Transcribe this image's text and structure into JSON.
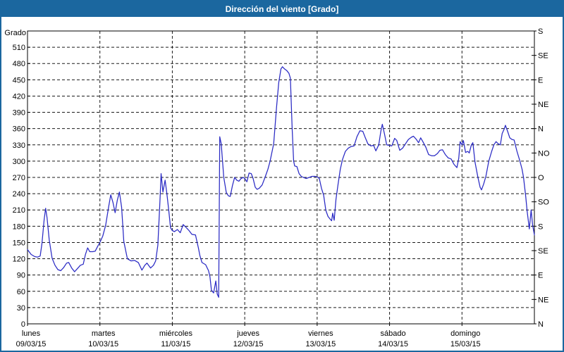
{
  "header": {
    "title": "Dirección del viento [Grado]"
  },
  "colors": {
    "header_bg": "#1b679f",
    "window_border": "#1b679f",
    "plot_bg": "#ffffff",
    "axis": "#000000",
    "grid": "#1a1a1a",
    "text": "#000000",
    "title_text": "#ffffff",
    "series_line": "#2a2ac4"
  },
  "chart_data": {
    "type": "line",
    "title": "Dirección del viento [Grado]",
    "grid": "dashed",
    "legend": "none",
    "ylim": [
      0,
      540
    ],
    "xlim_days": [
      0,
      7
    ],
    "y_axis_left": {
      "label": "Grado",
      "ticks": [
        0,
        30,
        60,
        90,
        120,
        150,
        180,
        210,
        240,
        270,
        300,
        330,
        360,
        390,
        420,
        450,
        480,
        510
      ]
    },
    "y_axis_right": {
      "ticks": [
        {
          "deg": 0,
          "label": "N"
        },
        {
          "deg": 45,
          "label": "NE"
        },
        {
          "deg": 90,
          "label": "E"
        },
        {
          "deg": 135,
          "label": "SE"
        },
        {
          "deg": 180,
          "label": "S"
        },
        {
          "deg": 225,
          "label": "SO"
        },
        {
          "deg": 270,
          "label": "O"
        },
        {
          "deg": 315,
          "label": "NO"
        },
        {
          "deg": 360,
          "label": "N"
        },
        {
          "deg": 405,
          "label": "NE"
        },
        {
          "deg": 450,
          "label": "E"
        },
        {
          "deg": 495,
          "label": "SE"
        },
        {
          "deg": 540,
          "label": "S"
        }
      ]
    },
    "x_axis": {
      "days": [
        {
          "name": "lunes",
          "date": "09/03/15"
        },
        {
          "name": "martes",
          "date": "10/03/15"
        },
        {
          "name": "miércoles",
          "date": "11/03/15"
        },
        {
          "name": "jueves",
          "date": "12/03/15"
        },
        {
          "name": "viernes",
          "date": "13/03/15"
        },
        {
          "name": "sábado",
          "date": "14/03/15"
        },
        {
          "name": "domingo",
          "date": "15/03/15"
        }
      ]
    },
    "series": [
      {
        "name": "Dirección del viento",
        "color": "#2a2ac4",
        "points": [
          [
            0.0,
            137
          ],
          [
            0.05,
            128
          ],
          [
            0.1,
            124
          ],
          [
            0.14,
            123
          ],
          [
            0.175,
            125
          ],
          [
            0.2,
            148
          ],
          [
            0.23,
            192
          ],
          [
            0.25,
            213
          ],
          [
            0.27,
            196
          ],
          [
            0.3,
            155
          ],
          [
            0.34,
            121
          ],
          [
            0.38,
            108
          ],
          [
            0.42,
            100
          ],
          [
            0.46,
            98
          ],
          [
            0.5,
            104
          ],
          [
            0.54,
            112
          ],
          [
            0.57,
            113
          ],
          [
            0.61,
            103
          ],
          [
            0.65,
            96
          ],
          [
            0.69,
            102
          ],
          [
            0.73,
            108
          ],
          [
            0.77,
            110
          ],
          [
            0.8,
            128
          ],
          [
            0.83,
            140
          ],
          [
            0.86,
            133
          ],
          [
            0.9,
            133
          ],
          [
            0.935,
            134
          ],
          [
            0.97,
            143
          ],
          [
            1.0,
            150
          ],
          [
            1.04,
            162
          ],
          [
            1.08,
            182
          ],
          [
            1.12,
            215
          ],
          [
            1.15,
            238
          ],
          [
            1.18,
            224
          ],
          [
            1.21,
            205
          ],
          [
            1.24,
            228
          ],
          [
            1.27,
            243
          ],
          [
            1.3,
            215
          ],
          [
            1.33,
            152
          ],
          [
            1.38,
            120
          ],
          [
            1.43,
            116
          ],
          [
            1.48,
            117
          ],
          [
            1.53,
            113
          ],
          [
            1.58,
            99
          ],
          [
            1.62,
            108
          ],
          [
            1.65,
            112
          ],
          [
            1.7,
            103
          ],
          [
            1.74,
            108
          ],
          [
            1.77,
            116
          ],
          [
            1.8,
            145
          ],
          [
            1.83,
            230
          ],
          [
            1.845,
            277
          ],
          [
            1.87,
            243
          ],
          [
            1.9,
            265
          ],
          [
            1.925,
            240
          ],
          [
            1.95,
            210
          ],
          [
            1.975,
            177
          ],
          [
            2.0,
            172
          ],
          [
            2.03,
            170
          ],
          [
            2.07,
            174
          ],
          [
            2.11,
            168
          ],
          [
            2.15,
            183
          ],
          [
            2.19,
            178
          ],
          [
            2.23,
            172
          ],
          [
            2.27,
            165
          ],
          [
            2.32,
            164
          ],
          [
            2.36,
            140
          ],
          [
            2.38,
            126
          ],
          [
            2.41,
            113
          ],
          [
            2.46,
            109
          ],
          [
            2.5,
            98
          ],
          [
            2.52,
            87
          ],
          [
            2.54,
            62
          ],
          [
            2.57,
            57
          ],
          [
            2.6,
            79
          ],
          [
            2.62,
            55
          ],
          [
            2.64,
            49
          ],
          [
            2.655,
            345
          ],
          [
            2.675,
            332
          ],
          [
            2.71,
            270
          ],
          [
            2.745,
            242
          ],
          [
            2.775,
            236
          ],
          [
            2.8,
            235
          ],
          [
            2.83,
            255
          ],
          [
            2.86,
            270
          ],
          [
            2.89,
            265
          ],
          [
            2.92,
            263
          ],
          [
            2.95,
            268
          ],
          [
            2.98,
            270
          ],
          [
            3.0,
            268
          ],
          [
            3.03,
            262
          ],
          [
            3.06,
            278
          ],
          [
            3.09,
            277
          ],
          [
            3.115,
            268
          ],
          [
            3.145,
            252
          ],
          [
            3.17,
            248
          ],
          [
            3.2,
            250
          ],
          [
            3.24,
            256
          ],
          [
            3.28,
            270
          ],
          [
            3.32,
            285
          ],
          [
            3.35,
            300
          ],
          [
            3.4,
            332
          ],
          [
            3.44,
            400
          ],
          [
            3.47,
            445
          ],
          [
            3.5,
            470
          ],
          [
            3.52,
            474
          ],
          [
            3.55,
            470
          ],
          [
            3.58,
            467
          ],
          [
            3.61,
            462
          ],
          [
            3.63,
            453
          ],
          [
            3.655,
            360
          ],
          [
            3.675,
            300
          ],
          [
            3.69,
            291
          ],
          [
            3.72,
            290
          ],
          [
            3.75,
            277
          ],
          [
            3.78,
            272
          ],
          [
            3.81,
            270
          ],
          [
            3.85,
            268
          ],
          [
            3.89,
            270
          ],
          [
            3.93,
            272
          ],
          [
            3.97,
            272
          ],
          [
            4.0,
            271
          ],
          [
            4.03,
            268
          ],
          [
            4.06,
            250
          ],
          [
            4.09,
            237
          ],
          [
            4.12,
            209
          ],
          [
            4.15,
            198
          ],
          [
            4.18,
            193
          ],
          [
            4.2,
            190
          ],
          [
            4.215,
            204
          ],
          [
            4.235,
            191
          ],
          [
            4.26,
            230
          ],
          [
            4.29,
            258
          ],
          [
            4.32,
            285
          ],
          [
            4.35,
            303
          ],
          [
            4.39,
            318
          ],
          [
            4.43,
            324
          ],
          [
            4.47,
            327
          ],
          [
            4.51,
            328
          ],
          [
            4.55,
            345
          ],
          [
            4.59,
            356
          ],
          [
            4.63,
            355
          ],
          [
            4.66,
            345
          ],
          [
            4.7,
            332
          ],
          [
            4.74,
            328
          ],
          [
            4.78,
            329
          ],
          [
            4.81,
            319
          ],
          [
            4.85,
            330
          ],
          [
            4.88,
            355
          ],
          [
            4.9,
            368
          ],
          [
            4.93,
            350
          ],
          [
            4.96,
            330
          ],
          [
            5.0,
            329
          ],
          [
            5.03,
            328
          ],
          [
            5.07,
            342
          ],
          [
            5.1,
            338
          ],
          [
            5.14,
            320
          ],
          [
            5.18,
            324
          ],
          [
            5.22,
            332
          ],
          [
            5.26,
            340
          ],
          [
            5.3,
            344
          ],
          [
            5.33,
            346
          ],
          [
            5.37,
            340
          ],
          [
            5.4,
            334
          ],
          [
            5.43,
            343
          ],
          [
            5.46,
            336
          ],
          [
            5.5,
            326
          ],
          [
            5.54,
            312
          ],
          [
            5.58,
            310
          ],
          [
            5.62,
            310
          ],
          [
            5.66,
            314
          ],
          [
            5.695,
            320
          ],
          [
            5.73,
            321
          ],
          [
            5.77,
            312
          ],
          [
            5.81,
            306
          ],
          [
            5.85,
            304
          ],
          [
            5.89,
            294
          ],
          [
            5.93,
            288
          ],
          [
            5.955,
            305
          ],
          [
            5.975,
            336
          ],
          [
            6.0,
            330
          ],
          [
            6.02,
            338
          ],
          [
            6.05,
            316
          ],
          [
            6.08,
            318
          ],
          [
            6.1,
            315
          ],
          [
            6.13,
            330
          ],
          [
            6.15,
            334
          ],
          [
            6.18,
            298
          ],
          [
            6.22,
            270
          ],
          [
            6.25,
            252
          ],
          [
            6.27,
            247
          ],
          [
            6.3,
            258
          ],
          [
            6.33,
            272
          ],
          [
            6.37,
            300
          ],
          [
            6.41,
            318
          ],
          [
            6.44,
            330
          ],
          [
            6.47,
            336
          ],
          [
            6.5,
            332
          ],
          [
            6.53,
            330
          ],
          [
            6.555,
            351
          ],
          [
            6.585,
            360
          ],
          [
            6.6,
            366
          ],
          [
            6.63,
            355
          ],
          [
            6.66,
            343
          ],
          [
            6.69,
            340
          ],
          [
            6.72,
            339
          ],
          [
            6.76,
            318
          ],
          [
            6.8,
            300
          ],
          [
            6.83,
            285
          ],
          [
            6.85,
            270
          ],
          [
            6.88,
            235
          ],
          [
            6.9,
            208
          ],
          [
            6.93,
            175
          ],
          [
            6.955,
            210
          ],
          [
            6.975,
            183
          ],
          [
            7.0,
            164
          ]
        ]
      }
    ]
  }
}
